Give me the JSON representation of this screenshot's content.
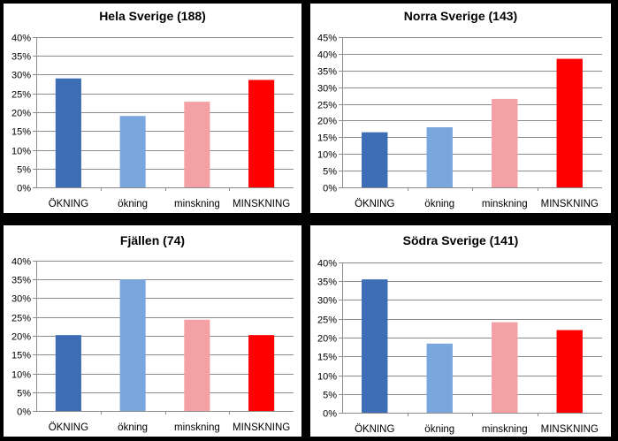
{
  "chart_data": [
    {
      "type": "bar",
      "title": "Hela Sverige (188)",
      "categories": [
        "ÖKNING",
        "ökning",
        "minskning",
        "MINSKNING"
      ],
      "values": [
        0.29,
        0.19,
        0.228,
        0.286
      ],
      "colors": [
        "#3d6db5",
        "#7aa6de",
        "#f4a1a6",
        "#ff0000"
      ],
      "ylim": [
        0,
        0.4
      ],
      "ytick_step": 0.05,
      "ytick_labels": [
        "0%",
        "5%",
        "10%",
        "15%",
        "20%",
        "25%",
        "30%",
        "35%",
        "40%"
      ],
      "grid": true,
      "legend": "none"
    },
    {
      "type": "bar",
      "title": "Norra Sverige (143)",
      "categories": [
        "ÖKNING",
        "ökning",
        "minskning",
        "MINSKNING"
      ],
      "values": [
        0.165,
        0.18,
        0.265,
        0.385
      ],
      "colors": [
        "#3d6db5",
        "#7aa6de",
        "#f4a1a6",
        "#ff0000"
      ],
      "ylim": [
        0,
        0.45
      ],
      "ytick_step": 0.05,
      "ytick_labels": [
        "0%",
        "5%",
        "10%",
        "15%",
        "20%",
        "25%",
        "30%",
        "35%",
        "40%",
        "45%"
      ],
      "grid": true,
      "legend": "none"
    },
    {
      "type": "bar",
      "title": "Fjällen (74)",
      "categories": [
        "ÖKNING",
        "ökning",
        "minskning",
        "MINSKNING"
      ],
      "values": [
        0.202,
        0.35,
        0.243,
        0.202
      ],
      "colors": [
        "#3d6db5",
        "#7aa6de",
        "#f4a1a6",
        "#ff0000"
      ],
      "ylim": [
        0,
        0.4
      ],
      "ytick_step": 0.05,
      "ytick_labels": [
        "0%",
        "5%",
        "10%",
        "15%",
        "20%",
        "25%",
        "30%",
        "35%",
        "40%"
      ],
      "grid": true,
      "legend": "none"
    },
    {
      "type": "bar",
      "title": "Södra Sverige (141)",
      "categories": [
        "ÖKNING",
        "ökning",
        "minskning",
        "MINSKNING"
      ],
      "values": [
        0.355,
        0.184,
        0.241,
        0.22
      ],
      "colors": [
        "#3d6db5",
        "#7aa6de",
        "#f4a1a6",
        "#ff0000"
      ],
      "ylim": [
        0,
        0.4
      ],
      "ytick_step": 0.05,
      "ytick_labels": [
        "0%",
        "5%",
        "10%",
        "15%",
        "20%",
        "25%",
        "30%",
        "35%",
        "40%"
      ],
      "grid": true,
      "legend": "none"
    }
  ]
}
